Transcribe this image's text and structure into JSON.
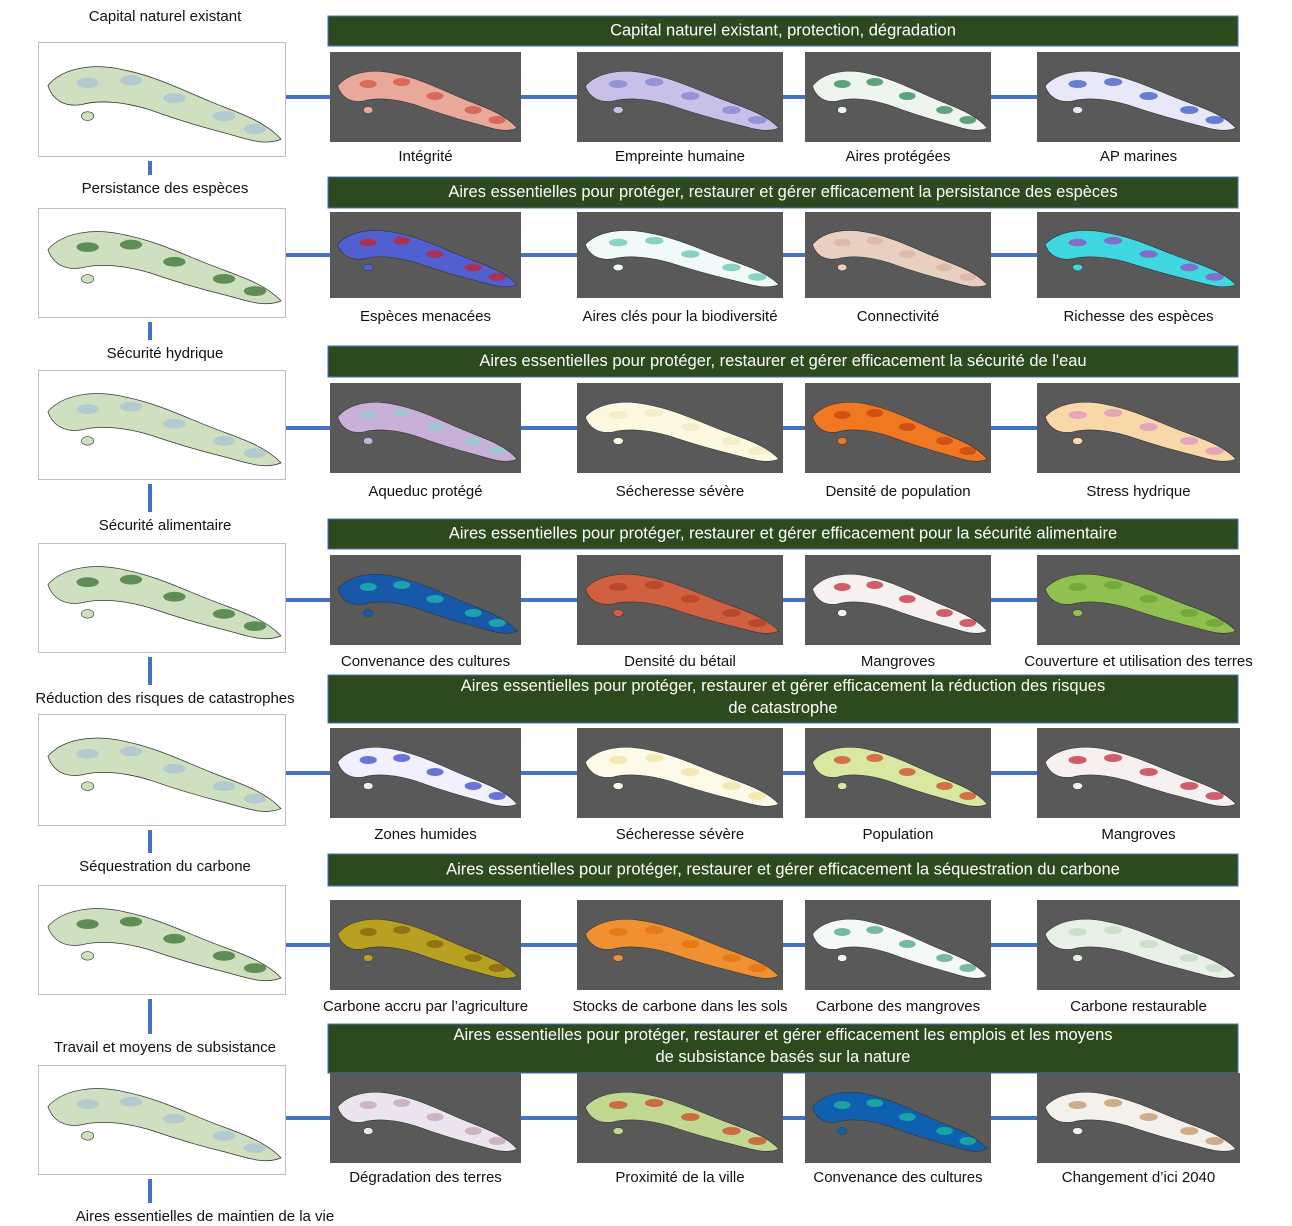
{
  "rows": [
    {
      "label": "Capital naturel existant",
      "banner": "Capital naturel existant, protection, dégradation",
      "maps": [
        "Intégrité",
        "Empreinte humaine",
        "Aires protégées",
        "AP marines"
      ]
    },
    {
      "label": "Persistance des espèces",
      "banner": "Aires essentielles pour protéger, restaurer et gérer efficacement la persistance des espèces",
      "maps": [
        "Espèces menacées",
        "Aires clés pour la biodiversité",
        "Connectivité",
        "Richesse des espèces"
      ]
    },
    {
      "label": "Sécurité hydrique",
      "banner": "Aires essentielles pour protéger, restaurer et gérer efficacement la sécurité de l'eau",
      "maps": [
        "Aqueduc protégé",
        "Sécheresse sévère",
        "Densité de population",
        "Stress hydrique"
      ]
    },
    {
      "label": "Sécurité alimentaire",
      "banner": "Aires essentielles pour protéger, restaurer et gérer efficacement pour la sécurité alimentaire",
      "maps": [
        "Convenance des cultures",
        "Densité du bétail",
        "Mangroves",
        "Couverture et utilisation des terres"
      ]
    },
    {
      "label": "Réduction des risques de catastrophes",
      "banner": "Aires essentielles pour protéger, restaurer et gérer efficacement la réduction des risques de catastrophe",
      "maps": [
        "Zones humides",
        "Sécheresse sévère",
        "Population",
        "Mangroves"
      ]
    },
    {
      "label": "Séquestration du carbone",
      "banner": "Aires essentielles pour protéger, restaurer et gérer efficacement la séquestration du carbone",
      "maps": [
        "Carbone accru par l’agriculture",
        "Stocks de carbone dans les sols",
        "Carbone des mangroves",
        "Carbone restaurable"
      ]
    },
    {
      "label": "Travail et moyens de subsistance",
      "banner": "Aires essentielles pour protéger, restaurer et gérer efficacement les emplois et les moyens de subsistance basés sur la nature",
      "maps": [
        "Dégradation des terres",
        "Proximité de la ville",
        "Convenance des cultures",
        "Changement d’ici 2040"
      ]
    }
  ],
  "footer": "Aires essentielles de maintien de la vie"
}
